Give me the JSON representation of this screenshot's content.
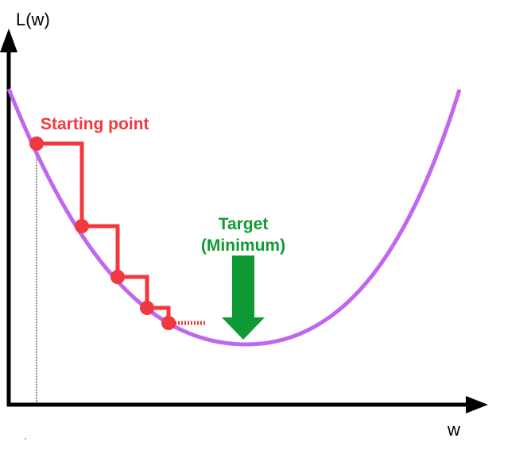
{
  "diagram": {
    "y_axis_label": "L(w)",
    "x_axis_label": "w",
    "start_label": "Starting point",
    "target_label_line1": "Target",
    "target_label_line2": "(Minimum)",
    "colors": {
      "axis": "#000000",
      "curve": "#c066f0",
      "steps": "#f2383f",
      "target": "#0f9a34"
    },
    "icons": [
      "up-arrow-icon",
      "right-arrow-icon",
      "down-arrow-icon"
    ]
  }
}
